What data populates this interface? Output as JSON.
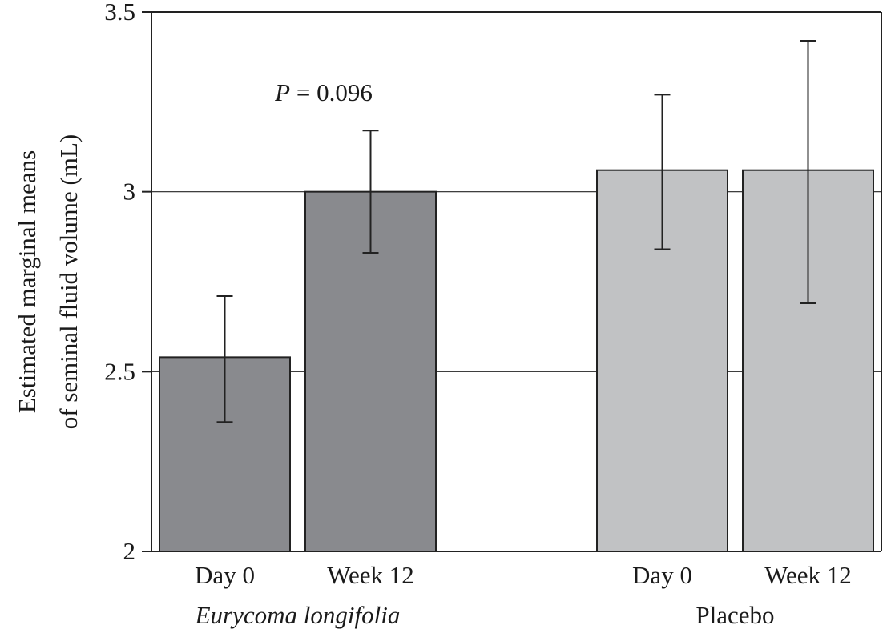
{
  "chart_data": {
    "type": "bar",
    "ylabel_lines": [
      "Estimated marginal means",
      "of seminal fluid volume (mL)"
    ],
    "ylim": [
      2,
      3.5
    ],
    "yticks": [
      {
        "value": 2,
        "label": "2"
      },
      {
        "value": 2.5,
        "label": "2.5"
      },
      {
        "value": 3,
        "label": "3"
      },
      {
        "value": 3.5,
        "label": "3.5"
      }
    ],
    "gridlines": [
      2.5,
      3
    ],
    "groups": [
      {
        "name": "Eurycoma longifolia",
        "italic": true,
        "color": "#898a8e",
        "bars": [
          {
            "category": "Day 0",
            "value": 2.54,
            "err_low": 2.36,
            "err_high": 2.71
          },
          {
            "category": "Week 12",
            "value": 3.0,
            "err_low": 2.83,
            "err_high": 3.17
          }
        ]
      },
      {
        "name": "Placebo",
        "italic": false,
        "color": "#c1c2c4",
        "bars": [
          {
            "category": "Day 0",
            "value": 3.06,
            "err_low": 2.84,
            "err_high": 3.27
          },
          {
            "category": "Week 12",
            "value": 3.06,
            "err_low": 2.69,
            "err_high": 3.42
          }
        ]
      }
    ],
    "annotation": {
      "italic_part": "P",
      "rest": " = 0.096"
    }
  }
}
